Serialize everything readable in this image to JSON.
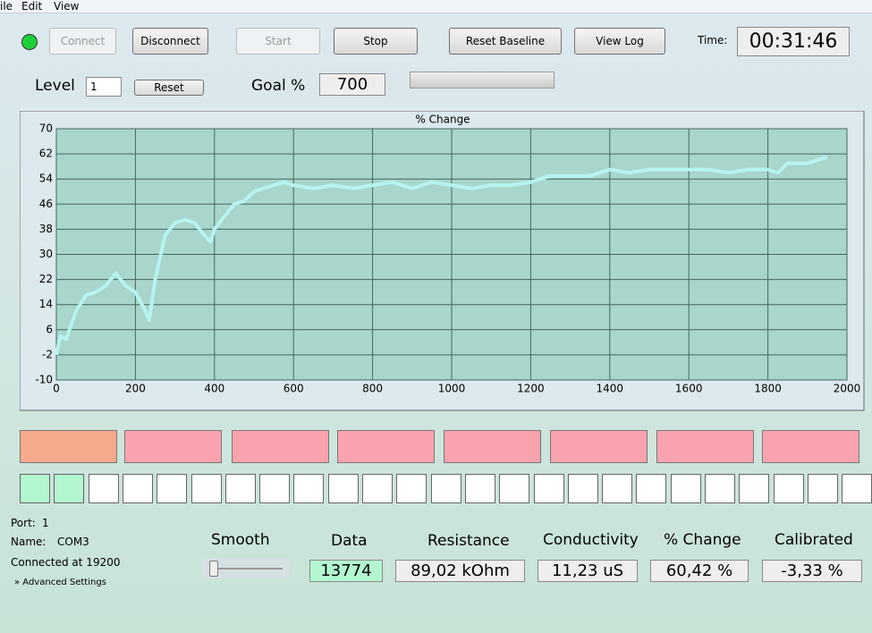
{
  "menu": [
    "ile",
    "Edit",
    "View"
  ],
  "toolbar": {
    "connect": "Connect",
    "disconnect": "Disconnect",
    "start": "Start",
    "stop": "Stop",
    "reset_baseline": "Reset Baseline",
    "view_log": "View Log",
    "time_label": "Time:",
    "time": "00:31:46"
  },
  "level": {
    "label": "Level",
    "value": "1",
    "reset": "Reset",
    "goal_label": "Goal %",
    "goal": "700"
  },
  "chart_data": {
    "type": "line",
    "title": "% Change",
    "color": "#b6f3f1",
    "grid": true,
    "x": [
      0,
      10,
      25,
      50,
      75,
      100,
      125,
      150,
      175,
      200,
      225,
      235,
      250,
      275,
      300,
      325,
      350,
      375,
      390,
      400,
      425,
      450,
      475,
      500,
      525,
      550,
      575,
      600,
      650,
      700,
      750,
      800,
      850,
      900,
      950,
      1000,
      1050,
      1100,
      1150,
      1200,
      1250,
      1300,
      1350,
      1400,
      1450,
      1500,
      1550,
      1600,
      1650,
      1700,
      1750,
      1800,
      1825,
      1850,
      1900,
      1950
    ],
    "values": [
      -2,
      4,
      3,
      12,
      17,
      18,
      20,
      24,
      20,
      18,
      12,
      9,
      22,
      36,
      40,
      41,
      40,
      36,
      34,
      38,
      42,
      46,
      47,
      50,
      51,
      52,
      53,
      52,
      51,
      52,
      51,
      52,
      53,
      51,
      53,
      52,
      51,
      52,
      52,
      53,
      55,
      55,
      55,
      57,
      56,
      57,
      57,
      57,
      57,
      56,
      57,
      57,
      56,
      59,
      59,
      61
    ],
    "xlim": [
      0,
      2000
    ],
    "ylim": [
      -10,
      70
    ],
    "xticks": [
      0,
      200,
      400,
      600,
      800,
      1000,
      1200,
      1400,
      1600,
      1800,
      2000
    ],
    "yticks": [
      -10,
      -2,
      6,
      14,
      22,
      30,
      38,
      46,
      54,
      62,
      70
    ]
  },
  "port": {
    "port_label": "Port:",
    "port": "1",
    "name_label": "Name:",
    "name": "COM3",
    "connected": "Connected at 19200",
    "advanced": "Advanced Settings"
  },
  "readouts": {
    "smooth": "Smooth",
    "data_label": "Data",
    "data": "13774",
    "resistance_label": "Resistance",
    "resistance": "89,02 kOhm",
    "conductivity_label": "Conductivity",
    "conductivity": "11,23 uS",
    "change_label": "% Change",
    "change": "60,42 %",
    "calibrated_label": "Calibrated",
    "calibrated": "-3,33 %"
  }
}
